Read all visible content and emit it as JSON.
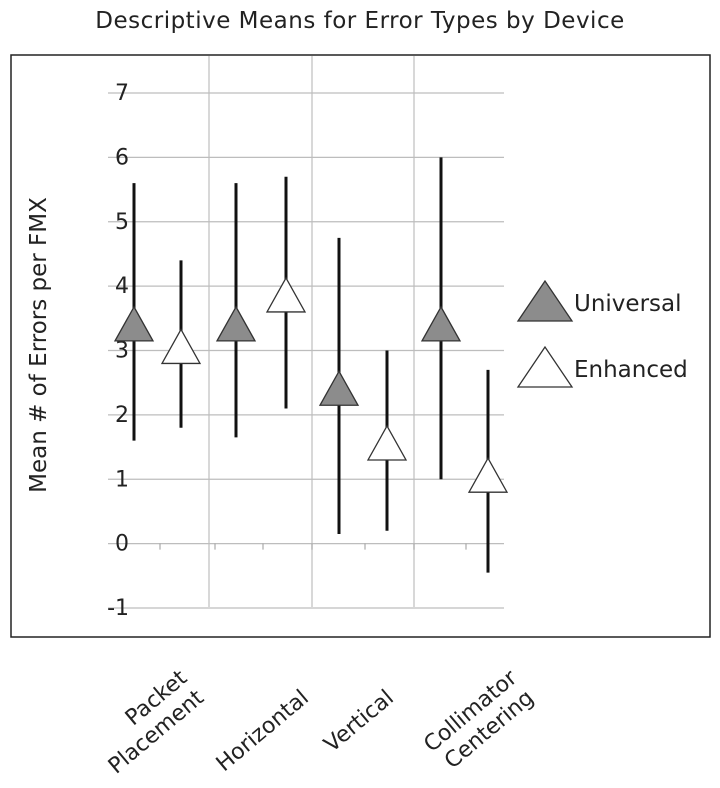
{
  "chart_data": {
    "type": "scatter",
    "title": "Descriptive Means for Error Types by Device",
    "xlabel": "",
    "ylabel": "Mean # of Errors per FMX",
    "ylim": [
      -1,
      7
    ],
    "yticks": [
      "-1",
      "0",
      "1",
      "2",
      "3",
      "4",
      "5",
      "6",
      "7"
    ],
    "categories": [
      [
        "Packet",
        "Placement"
      ],
      [
        "Horizontal"
      ],
      [
        "Vertical"
      ],
      [
        "Collimator",
        "Centering"
      ]
    ],
    "grid": true,
    "legend_position": "right",
    "series": [
      {
        "name": "Universal",
        "color": "#8c8c8c",
        "marker": "triangle",
        "mean": [
          3.35,
          3.35,
          2.35,
          3.35
        ],
        "lower": [
          1.6,
          1.65,
          0.15,
          1.0
        ],
        "upper": [
          5.6,
          5.6,
          4.75,
          6.0
        ]
      },
      {
        "name": "Enhanced",
        "color": "#ffffff",
        "marker": "triangle",
        "mean": [
          3.0,
          3.8,
          1.5,
          1.0
        ],
        "lower": [
          1.8,
          2.1,
          0.2,
          -0.45
        ],
        "upper": [
          4.4,
          5.7,
          3.0,
          2.7
        ]
      }
    ]
  }
}
